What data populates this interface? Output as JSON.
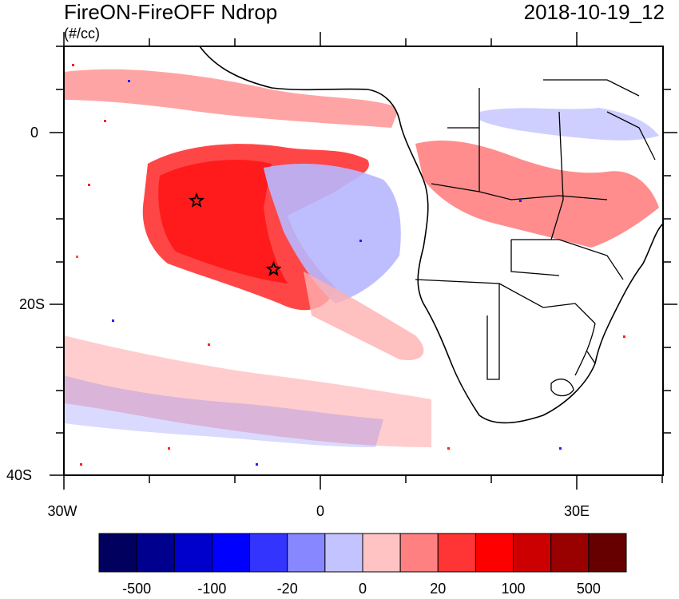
{
  "map": {
    "title": "FireON-FireOFF Ndrop",
    "units": "(#/cc)",
    "datetime": "2018-10-19_12",
    "lat_labels": [
      "0",
      "20S",
      "40S"
    ],
    "lon_labels": [
      "30W",
      "0",
      "30E"
    ],
    "markers": [
      {
        "name": "star-marker-1",
        "lon": -14.5,
        "lat": -8
      },
      {
        "name": "star-marker-2",
        "lon": -5.5,
        "lat": -16
      }
    ]
  },
  "colorbar": {
    "labels": [
      "-500",
      "-100",
      "-20",
      "0",
      "20",
      "100",
      "500"
    ],
    "colors": [
      "#02005f",
      "#00008f",
      "#0000cc",
      "#0000ff",
      "#3434ff",
      "#8787ff",
      "#c3c3ff",
      "#ffc3c3",
      "#ff8080",
      "#ff3434",
      "#ff0000",
      "#cc0000",
      "#990000",
      "#660000"
    ]
  }
}
